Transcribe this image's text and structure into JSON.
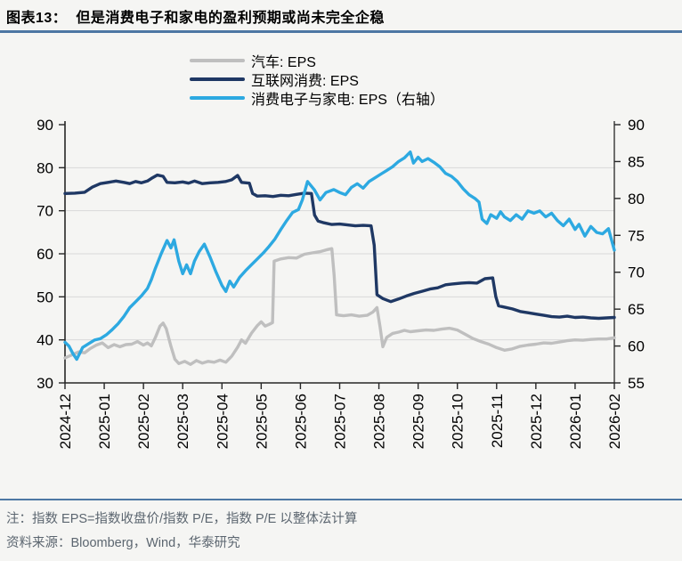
{
  "header": {
    "figure_label": "图表13：",
    "title": "但是消费电子和家电的盈利预期或尚未完全企稳"
  },
  "footer": {
    "note": "注：指数 EPS=指数收盘价/指数 P/E，指数 P/E 以整体法计算",
    "source": "资料来源：Bloomberg，Wind，华泰研究"
  },
  "colors": {
    "divider": "#4d77a3",
    "footnote_text": "#5c6670",
    "axis_line": "#262626",
    "grid_line": "#d9d9d9",
    "tick_text": "#000000",
    "background": "#f5f5f3"
  },
  "chart_data": {
    "type": "line",
    "title": "但是消费电子和家电的盈利预期或尚未完全企稳",
    "x_labels": [
      "2024-12",
      "2025-01",
      "2025-02",
      "2025-03",
      "2025-04",
      "2025-05",
      "2025-06",
      "2025-07",
      "2025-08",
      "2025-09",
      "2025-10",
      "2025-11",
      "2025-12",
      "2026-01",
      "2026-02"
    ],
    "x_range": [
      0,
      14
    ],
    "left_axis": {
      "min": 30,
      "max": 90,
      "step": 10,
      "ticks": [
        30,
        40,
        50,
        60,
        70,
        80,
        90
      ]
    },
    "right_axis": {
      "min": 55,
      "max": 90,
      "step": 5,
      "ticks": [
        55,
        60,
        65,
        70,
        75,
        80,
        85,
        90
      ]
    },
    "grid": {
      "horizontal_at_left_ticks": [
        40,
        50,
        60,
        70,
        80
      ]
    },
    "legend_position": "top-center",
    "series": [
      {
        "name": "汽车: EPS",
        "axis": "left",
        "color": "#bfbfbf",
        "points": [
          [
            0,
            35.8
          ],
          [
            0.2,
            36.6
          ],
          [
            0.35,
            37.2
          ],
          [
            0.5,
            37.0
          ],
          [
            0.65,
            38.0
          ],
          [
            0.8,
            38.8
          ],
          [
            0.95,
            39.3
          ],
          [
            1.1,
            38.2
          ],
          [
            1.25,
            38.9
          ],
          [
            1.4,
            38.4
          ],
          [
            1.55,
            38.9
          ],
          [
            1.7,
            39.0
          ],
          [
            1.85,
            39.6
          ],
          [
            2.0,
            38.8
          ],
          [
            2.1,
            39.3
          ],
          [
            2.2,
            38.6
          ],
          [
            2.3,
            40.5
          ],
          [
            2.42,
            43.2
          ],
          [
            2.5,
            43.9
          ],
          [
            2.58,
            42.6
          ],
          [
            2.7,
            38.5
          ],
          [
            2.8,
            35.5
          ],
          [
            2.9,
            34.5
          ],
          [
            3.05,
            35.0
          ],
          [
            3.2,
            34.3
          ],
          [
            3.35,
            35.2
          ],
          [
            3.5,
            34.6
          ],
          [
            3.65,
            35.0
          ],
          [
            3.8,
            34.8
          ],
          [
            3.95,
            35.3
          ],
          [
            4.1,
            34.8
          ],
          [
            4.25,
            36.2
          ],
          [
            4.4,
            38.3
          ],
          [
            4.5,
            40.0
          ],
          [
            4.6,
            39.2
          ],
          [
            4.75,
            41.5
          ],
          [
            4.9,
            43.3
          ],
          [
            5.0,
            44.2
          ],
          [
            5.1,
            43.2
          ],
          [
            5.2,
            43.6
          ],
          [
            5.29,
            44.0
          ],
          [
            5.33,
            58.3
          ],
          [
            5.5,
            58.8
          ],
          [
            5.7,
            59.1
          ],
          [
            5.9,
            59.0
          ],
          [
            6.1,
            59.9
          ],
          [
            6.3,
            60.2
          ],
          [
            6.5,
            60.5
          ],
          [
            6.65,
            60.9
          ],
          [
            6.8,
            61.2
          ],
          [
            6.86,
            55.0
          ],
          [
            6.92,
            45.8
          ],
          [
            7.1,
            45.6
          ],
          [
            7.3,
            45.8
          ],
          [
            7.5,
            45.5
          ],
          [
            7.7,
            45.7
          ],
          [
            7.85,
            46.5
          ],
          [
            7.95,
            47.5
          ],
          [
            8.03,
            43.0
          ],
          [
            8.1,
            38.4
          ],
          [
            8.2,
            40.6
          ],
          [
            8.35,
            41.5
          ],
          [
            8.5,
            41.8
          ],
          [
            8.65,
            42.2
          ],
          [
            8.8,
            41.9
          ],
          [
            9.0,
            42.1
          ],
          [
            9.2,
            42.3
          ],
          [
            9.4,
            42.2
          ],
          [
            9.6,
            42.5
          ],
          [
            9.8,
            42.7
          ],
          [
            10.0,
            42.3
          ],
          [
            10.2,
            41.3
          ],
          [
            10.4,
            40.3
          ],
          [
            10.6,
            39.6
          ],
          [
            10.8,
            39.0
          ],
          [
            11.0,
            38.2
          ],
          [
            11.2,
            37.6
          ],
          [
            11.4,
            37.9
          ],
          [
            11.6,
            38.5
          ],
          [
            11.8,
            38.8
          ],
          [
            12.0,
            39.0
          ],
          [
            12.2,
            39.3
          ],
          [
            12.4,
            39.2
          ],
          [
            12.6,
            39.5
          ],
          [
            12.8,
            39.8
          ],
          [
            13.0,
            40.0
          ],
          [
            13.2,
            39.9
          ],
          [
            13.4,
            40.1
          ],
          [
            13.6,
            40.2
          ],
          [
            13.8,
            40.2
          ],
          [
            14.0,
            40.5
          ]
        ]
      },
      {
        "name": "互联网消费: EPS",
        "axis": "left",
        "color": "#1f3864",
        "points": [
          [
            0,
            74.0
          ],
          [
            0.25,
            74.1
          ],
          [
            0.5,
            74.3
          ],
          [
            0.7,
            75.5
          ],
          [
            0.9,
            76.3
          ],
          [
            1.1,
            76.6
          ],
          [
            1.3,
            76.9
          ],
          [
            1.5,
            76.6
          ],
          [
            1.65,
            76.3
          ],
          [
            1.8,
            76.8
          ],
          [
            1.95,
            76.5
          ],
          [
            2.1,
            76.9
          ],
          [
            2.2,
            77.5
          ],
          [
            2.35,
            78.3
          ],
          [
            2.5,
            78.0
          ],
          [
            2.6,
            76.6
          ],
          [
            2.8,
            76.5
          ],
          [
            3.0,
            76.7
          ],
          [
            3.15,
            76.4
          ],
          [
            3.3,
            76.9
          ],
          [
            3.5,
            76.3
          ],
          [
            3.7,
            76.5
          ],
          [
            3.9,
            76.6
          ],
          [
            4.1,
            76.8
          ],
          [
            4.25,
            77.2
          ],
          [
            4.4,
            78.2
          ],
          [
            4.5,
            76.6
          ],
          [
            4.7,
            76.4
          ],
          [
            4.78,
            74.0
          ],
          [
            4.9,
            73.4
          ],
          [
            5.1,
            73.5
          ],
          [
            5.3,
            73.3
          ],
          [
            5.5,
            73.6
          ],
          [
            5.7,
            73.5
          ],
          [
            5.9,
            73.8
          ],
          [
            6.1,
            74.1
          ],
          [
            6.28,
            74.0
          ],
          [
            6.36,
            69.0
          ],
          [
            6.45,
            67.6
          ],
          [
            6.6,
            67.2
          ],
          [
            6.8,
            66.8
          ],
          [
            7.0,
            66.9
          ],
          [
            7.2,
            66.7
          ],
          [
            7.4,
            66.5
          ],
          [
            7.6,
            66.6
          ],
          [
            7.8,
            66.5
          ],
          [
            7.88,
            62.0
          ],
          [
            7.95,
            50.5
          ],
          [
            8.1,
            49.6
          ],
          [
            8.3,
            48.9
          ],
          [
            8.5,
            49.5
          ],
          [
            8.7,
            50.2
          ],
          [
            8.9,
            50.8
          ],
          [
            9.1,
            51.3
          ],
          [
            9.3,
            51.8
          ],
          [
            9.5,
            52.1
          ],
          [
            9.7,
            52.8
          ],
          [
            9.9,
            53.0
          ],
          [
            10.1,
            53.2
          ],
          [
            10.3,
            53.3
          ],
          [
            10.5,
            53.2
          ],
          [
            10.7,
            54.2
          ],
          [
            10.9,
            54.4
          ],
          [
            10.98,
            50.0
          ],
          [
            11.05,
            47.9
          ],
          [
            11.2,
            47.6
          ],
          [
            11.4,
            47.2
          ],
          [
            11.6,
            46.6
          ],
          [
            11.8,
            46.3
          ],
          [
            12.0,
            46.0
          ],
          [
            12.2,
            45.7
          ],
          [
            12.4,
            45.4
          ],
          [
            12.6,
            45.3
          ],
          [
            12.8,
            45.5
          ],
          [
            13.0,
            45.2
          ],
          [
            13.2,
            45.3
          ],
          [
            13.4,
            45.1
          ],
          [
            13.6,
            45.0
          ],
          [
            13.8,
            45.1
          ],
          [
            14.0,
            45.2
          ]
        ]
      },
      {
        "name": "消费电子与家电: EPS（右轴）",
        "axis": "right",
        "color": "#2da9e1",
        "points": [
          [
            0,
            60.5
          ],
          [
            0.1,
            60.0
          ],
          [
            0.2,
            59.0
          ],
          [
            0.3,
            58.2
          ],
          [
            0.45,
            59.8
          ],
          [
            0.6,
            60.3
          ],
          [
            0.75,
            60.8
          ],
          [
            0.9,
            61.0
          ],
          [
            1.05,
            61.5
          ],
          [
            1.2,
            62.2
          ],
          [
            1.35,
            63.0
          ],
          [
            1.5,
            64.0
          ],
          [
            1.65,
            65.2
          ],
          [
            1.8,
            66.0
          ],
          [
            1.95,
            66.8
          ],
          [
            2.1,
            67.8
          ],
          [
            2.2,
            69.0
          ],
          [
            2.3,
            70.5
          ],
          [
            2.45,
            72.5
          ],
          [
            2.6,
            74.3
          ],
          [
            2.7,
            73.3
          ],
          [
            2.78,
            74.4
          ],
          [
            2.9,
            71.5
          ],
          [
            3.0,
            69.8
          ],
          [
            3.1,
            71.0
          ],
          [
            3.2,
            69.8
          ],
          [
            3.3,
            71.5
          ],
          [
            3.42,
            72.8
          ],
          [
            3.55,
            73.8
          ],
          [
            3.7,
            72.0
          ],
          [
            3.85,
            70.0
          ],
          [
            4.0,
            68.2
          ],
          [
            4.1,
            67.4
          ],
          [
            4.2,
            68.8
          ],
          [
            4.3,
            68.0
          ],
          [
            4.45,
            69.3
          ],
          [
            4.6,
            70.2
          ],
          [
            4.75,
            71.0
          ],
          [
            4.9,
            71.8
          ],
          [
            5.05,
            72.6
          ],
          [
            5.2,
            73.5
          ],
          [
            5.35,
            74.5
          ],
          [
            5.5,
            75.8
          ],
          [
            5.65,
            77.0
          ],
          [
            5.8,
            78.1
          ],
          [
            5.95,
            78.5
          ],
          [
            6.05,
            79.8
          ],
          [
            6.18,
            82.3
          ],
          [
            6.35,
            81.2
          ],
          [
            6.5,
            79.8
          ],
          [
            6.65,
            80.8
          ],
          [
            6.85,
            81.2
          ],
          [
            7.0,
            80.8
          ],
          [
            7.15,
            80.5
          ],
          [
            7.3,
            81.5
          ],
          [
            7.45,
            82.0
          ],
          [
            7.6,
            81.4
          ],
          [
            7.75,
            82.3
          ],
          [
            7.9,
            82.8
          ],
          [
            8.05,
            83.3
          ],
          [
            8.2,
            83.8
          ],
          [
            8.35,
            84.3
          ],
          [
            8.5,
            85.0
          ],
          [
            8.65,
            85.5
          ],
          [
            8.8,
            86.3
          ],
          [
            8.88,
            84.8
          ],
          [
            9.0,
            85.6
          ],
          [
            9.1,
            85.0
          ],
          [
            9.25,
            85.4
          ],
          [
            9.4,
            84.9
          ],
          [
            9.55,
            84.3
          ],
          [
            9.7,
            83.4
          ],
          [
            9.85,
            83.0
          ],
          [
            10.0,
            82.3
          ],
          [
            10.15,
            81.3
          ],
          [
            10.3,
            80.5
          ],
          [
            10.45,
            80.0
          ],
          [
            10.55,
            79.5
          ],
          [
            10.63,
            77.2
          ],
          [
            10.75,
            76.6
          ],
          [
            10.85,
            77.8
          ],
          [
            11.0,
            77.3
          ],
          [
            11.1,
            78.2
          ],
          [
            11.2,
            77.5
          ],
          [
            11.35,
            77.0
          ],
          [
            11.5,
            77.8
          ],
          [
            11.65,
            77.2
          ],
          [
            11.8,
            78.3
          ],
          [
            11.95,
            78.0
          ],
          [
            12.1,
            78.3
          ],
          [
            12.25,
            77.5
          ],
          [
            12.4,
            78.0
          ],
          [
            12.55,
            77.0
          ],
          [
            12.7,
            76.3
          ],
          [
            12.85,
            77.2
          ],
          [
            13.0,
            75.8
          ],
          [
            13.1,
            76.5
          ],
          [
            13.25,
            74.9
          ],
          [
            13.4,
            76.2
          ],
          [
            13.55,
            75.4
          ],
          [
            13.7,
            75.2
          ],
          [
            13.85,
            75.9
          ],
          [
            14.0,
            73.0
          ]
        ]
      }
    ]
  }
}
